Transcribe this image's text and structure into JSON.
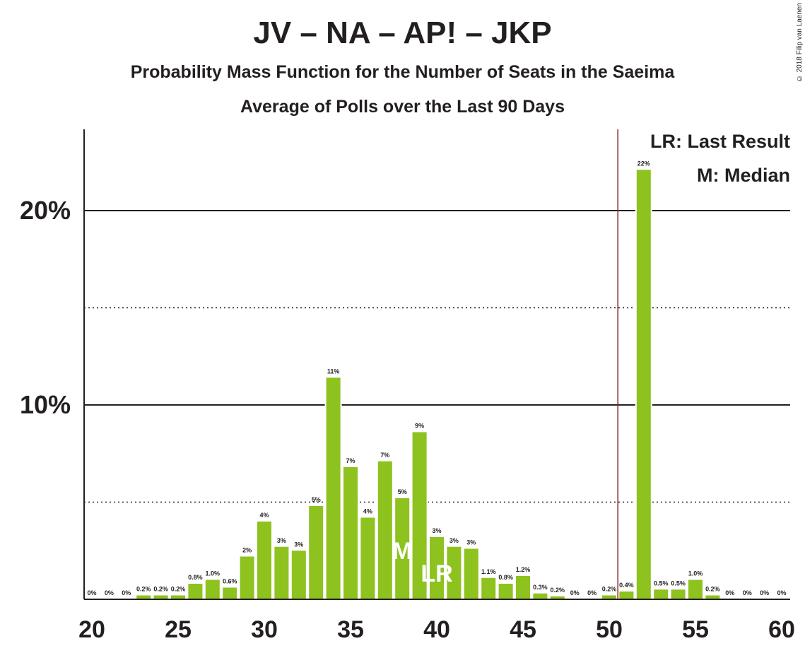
{
  "title": "JV – NA – AP! – JKP",
  "subtitle": "Probability Mass Function for the Number of Seats in the Saeima",
  "subtitle2": "Average of Polls over the Last 90 Days",
  "copyright": "© 2018 Filip van Laenen",
  "legend": {
    "last_result": "LR: Last Result",
    "median": "M: Median"
  },
  "colors": {
    "bar": "#8dc21f",
    "last_result_line": "#8b2323",
    "text": "#231f20"
  },
  "chart_data": {
    "type": "bar",
    "x": [
      20,
      21,
      22,
      23,
      24,
      25,
      26,
      27,
      28,
      29,
      30,
      31,
      32,
      33,
      34,
      35,
      36,
      37,
      38,
      39,
      40,
      41,
      42,
      43,
      44,
      45,
      46,
      47,
      48,
      49,
      50,
      51,
      52,
      53,
      54,
      55,
      56,
      57,
      58,
      59,
      60
    ],
    "values": [
      0,
      0,
      0,
      0.2,
      0.2,
      0.2,
      0.8,
      1.0,
      0.6,
      2.2,
      4.0,
      2.7,
      2.5,
      4.8,
      11.4,
      6.8,
      4.2,
      7.1,
      5.2,
      8.6,
      3.2,
      2.7,
      2.6,
      1.1,
      0.8,
      1.2,
      0.3,
      0.15,
      0,
      0,
      0.2,
      0.4,
      22.1,
      0.5,
      0.5,
      1.0,
      0.2,
      0,
      0,
      0,
      0
    ],
    "data_labels": [
      "0%",
      "0%",
      "0%",
      "0.2%",
      "0.2%",
      "0.2%",
      "0.8%",
      "1.0%",
      "0.6%",
      "2%",
      "4%",
      "3%",
      "3%",
      "5%",
      "11%",
      "7%",
      "4%",
      "7%",
      "5%",
      "9%",
      "3%",
      "3%",
      "3%",
      "1.1%",
      "0.8%",
      "1.2%",
      "0.3%",
      "0.2%",
      "0%",
      "0%",
      "0.2%",
      "0.4%",
      "22%",
      "0.5%",
      "0.5%",
      "1.0%",
      "0.2%",
      "0%",
      "0%",
      "0%",
      "0%"
    ],
    "x_ticks": [
      "20",
      "25",
      "30",
      "35",
      "40",
      "45",
      "50",
      "55",
      "60"
    ],
    "y_ticks": [
      "10%",
      "20%"
    ],
    "ylim": [
      0,
      24
    ],
    "median_seat": 38,
    "median_marker": "M",
    "last_result_seat": 40,
    "last_result_marker": "LR",
    "last_result_line_at": 50.5,
    "grid": "solid at 10% and 20%, dotted at 5% and 15%",
    "legend_position": "top-right"
  }
}
